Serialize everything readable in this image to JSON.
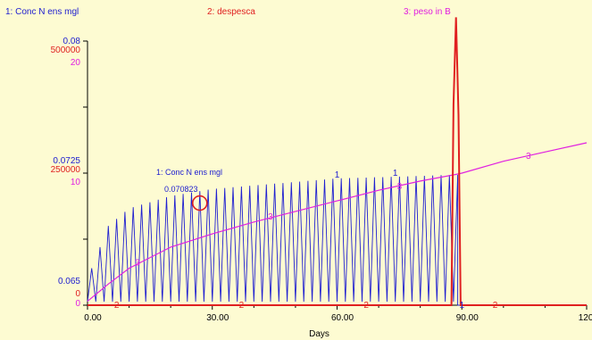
{
  "chart_data": {
    "type": "line",
    "legend": [
      {
        "label": "1: Conc N ens mgl",
        "color": "#2020d0"
      },
      {
        "label": "2: despesca",
        "color": "#e02020"
      },
      {
        "label": "3: peso in B",
        "color": "#e020e0"
      }
    ],
    "xlabel": "Days",
    "xlim": [
      0,
      120
    ],
    "x_ticks": [
      "0.00",
      "30.00",
      "60.00",
      "90.00",
      "120.00"
    ],
    "y_axes": [
      {
        "series": "1: Conc N ens mgl",
        "color": "#2020d0",
        "ticks": [
          "0.08",
          "0.0725",
          "0.065"
        ],
        "range": [
          0.065,
          0.08
        ]
      },
      {
        "series": "2: despesca",
        "color": "#e02020",
        "ticks": [
          "500000",
          "250000",
          "0"
        ],
        "range": [
          0,
          500000
        ]
      },
      {
        "series": "3: peso in B",
        "color": "#e020e0",
        "ticks": [
          "20",
          "10",
          "0"
        ],
        "range": [
          0,
          20
        ]
      }
    ],
    "series": [
      {
        "name": "1: Conc N ens mgl",
        "color": "#2020d0",
        "style": "oscillating",
        "period_days": 2,
        "envelope_upper": {
          "x": [
            0,
            5,
            10,
            20,
            30,
            45,
            60,
            75,
            87,
            89
          ],
          "y": [
            0.0665,
            0.0695,
            0.0705,
            0.0712,
            0.0716,
            0.0719,
            0.0722,
            0.0723,
            0.0724,
            0.0724
          ]
        },
        "envelope_lower": {
          "x": [
            0,
            10,
            30,
            60,
            89
          ],
          "y": [
            0.0652,
            0.0652,
            0.0652,
            0.0652,
            0.0652
          ]
        },
        "after_harvest": {
          "x": [
            89,
            90,
            120
          ],
          "y": [
            0.065,
            0.065,
            0.065
          ]
        }
      },
      {
        "name": "2: despesca",
        "color": "#e02020",
        "x": [
          0,
          87.5,
          88,
          88.6,
          89.2,
          89.7,
          120
        ],
        "y": [
          0,
          0,
          380000,
          545000,
          360000,
          0,
          0
        ]
      },
      {
        "name": "3: peso in B",
        "color": "#e020e0",
        "x": [
          0,
          5,
          10,
          20,
          30,
          40,
          50,
          60,
          70,
          80,
          88.5,
          90,
          100,
          110,
          120
        ],
        "y": [
          0.3,
          1.6,
          2.8,
          4.4,
          5.4,
          6.3,
          7.1,
          7.9,
          8.7,
          9.4,
          9.9,
          10.0,
          10.9,
          11.6,
          12.3
        ]
      }
    ],
    "series_markers": [
      {
        "series": "1: Conc N ens mgl",
        "label": "1",
        "x": [
          60,
          74,
          90
        ],
        "y": [
          0.0724,
          0.0725,
          0.065
        ]
      },
      {
        "series": "2: despesca",
        "label": "2",
        "x": [
          7,
          37,
          67,
          98
        ],
        "y": [
          0,
          0,
          0,
          0
        ]
      },
      {
        "series": "3: peso in B",
        "label": "3",
        "x": [
          12,
          44,
          75,
          106
        ],
        "y": [
          3.2,
          6.7,
          9.0,
          11.3
        ]
      }
    ],
    "annotation": {
      "label": "1: Conc N ens mgl",
      "value": "0.070823",
      "x": 27,
      "y": 0.0708,
      "color": "#2020d0"
    }
  }
}
